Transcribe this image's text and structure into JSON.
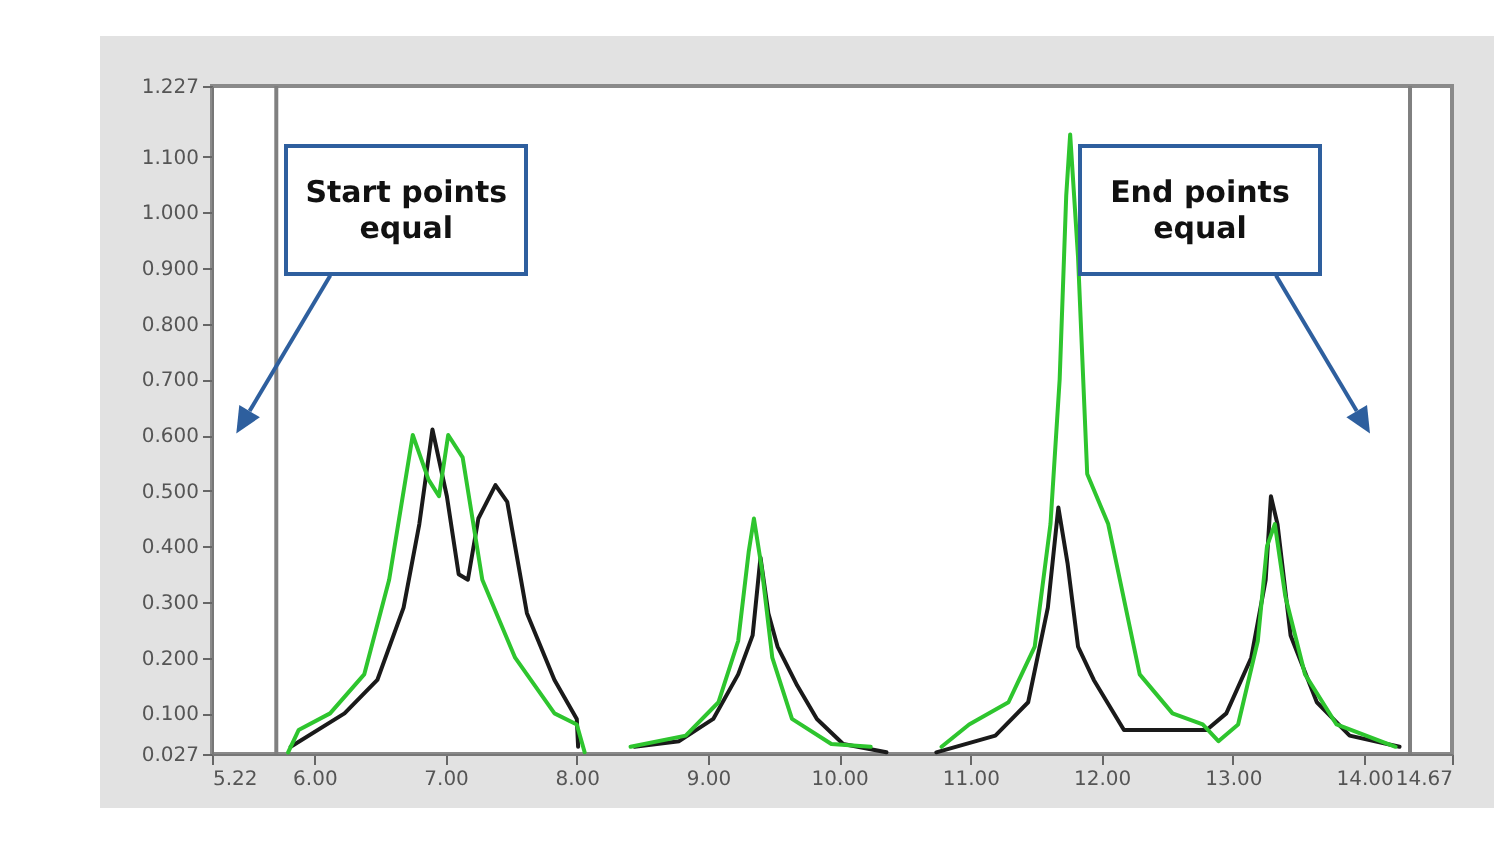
{
  "chart_data": {
    "type": "line",
    "xlim": [
      5.22,
      14.67
    ],
    "xticks": [
      5.22,
      {
        "value": 6,
        "label": "6.00"
      },
      {
        "value": 7,
        "label": "7.00"
      },
      {
        "value": 8,
        "label": "8.00"
      },
      {
        "value": 9,
        "label": "9.00"
      },
      {
        "value": 10,
        "label": "10.00"
      },
      {
        "value": 11,
        "label": "11.00"
      },
      {
        "value": 12,
        "label": "12.00"
      },
      {
        "value": 13,
        "label": "13.00"
      },
      {
        "value": 14,
        "label": "14.00"
      },
      14.67
    ],
    "ylim": [
      0.027,
      1.227
    ],
    "yticks": [
      0.027,
      {
        "value": 0.1,
        "label": "0.100"
      },
      {
        "value": 0.2,
        "label": "0.200"
      },
      {
        "value": 0.3,
        "label": "0.300"
      },
      {
        "value": 0.4,
        "label": "0.400"
      },
      {
        "value": 0.5,
        "label": "0.500"
      },
      {
        "value": 0.6,
        "label": "0.600"
      },
      {
        "value": 0.7,
        "label": "0.700"
      },
      {
        "value": 0.8,
        "label": "0.800"
      },
      {
        "value": 0.9,
        "label": "0.900"
      },
      {
        "value": 1.0,
        "label": "1.000"
      },
      {
        "value": 1.1,
        "label": "1.100"
      },
      1.227
    ],
    "grid": false,
    "ref_lines": [
      {
        "axis": "x",
        "value": 5.71,
        "color": "#808080"
      },
      {
        "axis": "x",
        "value": 14.35,
        "color": "#808080"
      }
    ],
    "annotations": [
      "Start points equal",
      "End points equal"
    ],
    "series": [
      {
        "color": "#1a1a1a",
        "x": [
          5.82,
          6.23,
          6.48,
          6.68,
          6.8,
          6.9,
          7.01,
          7.1,
          7.17,
          7.25,
          7.38,
          7.47,
          7.62,
          7.83,
          8.0,
          8.01,
          8.2,
          8.44,
          8.78,
          9.04,
          9.23,
          9.34,
          9.4,
          9.46,
          9.53,
          9.68,
          9.83,
          10.03,
          10.36,
          10.5,
          10.74,
          11.19,
          11.44,
          11.59,
          11.67,
          11.74,
          11.82,
          11.94,
          12.17,
          12.8,
          12.95,
          13.14,
          13.25,
          13.29,
          13.34,
          13.44,
          13.64,
          13.89,
          14.27
        ],
        "values": [
          0.04,
          0.1,
          0.16,
          0.29,
          0.44,
          0.61,
          0.49,
          0.35,
          0.34,
          0.45,
          0.51,
          0.48,
          0.28,
          0.16,
          0.09,
          0.04,
          null,
          0.04,
          0.05,
          0.09,
          0.17,
          0.24,
          0.38,
          0.28,
          0.22,
          0.15,
          0.09,
          0.045,
          0.03,
          null,
          0.03,
          0.06,
          0.12,
          0.29,
          0.47,
          0.37,
          0.22,
          0.16,
          0.07,
          0.07,
          0.1,
          0.2,
          0.34,
          0.49,
          0.44,
          0.24,
          0.12,
          0.06,
          0.04
        ]
      },
      {
        "color": "#2ec52e",
        "x": [
          5.8,
          5.88,
          6.12,
          6.38,
          6.57,
          6.75,
          6.87,
          6.95,
          7.02,
          7.13,
          7.28,
          7.53,
          7.83,
          8.0,
          8.06,
          8.2,
          8.41,
          8.83,
          9.08,
          9.23,
          9.31,
          9.35,
          9.41,
          9.49,
          9.64,
          9.94,
          10.24,
          10.5,
          10.78,
          10.99,
          11.29,
          11.49,
          11.61,
          11.68,
          11.73,
          11.76,
          11.82,
          11.89,
          12.05,
          12.29,
          12.54,
          12.77,
          12.89,
          13.04,
          13.19,
          13.26,
          13.32,
          13.4,
          13.55,
          13.79,
          14.24
        ],
        "values": [
          0.03,
          0.07,
          0.1,
          0.17,
          0.34,
          0.6,
          0.52,
          0.49,
          0.6,
          0.56,
          0.34,
          0.2,
          0.1,
          0.08,
          0.03,
          null,
          0.04,
          0.06,
          0.12,
          0.23,
          0.39,
          0.45,
          0.36,
          0.2,
          0.09,
          0.045,
          0.04,
          null,
          0.04,
          0.08,
          0.12,
          0.22,
          0.44,
          0.7,
          1.03,
          1.14,
          0.92,
          0.53,
          0.44,
          0.17,
          0.1,
          0.08,
          0.05,
          0.08,
          0.23,
          0.4,
          0.44,
          0.31,
          0.17,
          0.08,
          0.04
        ]
      }
    ]
  }
}
